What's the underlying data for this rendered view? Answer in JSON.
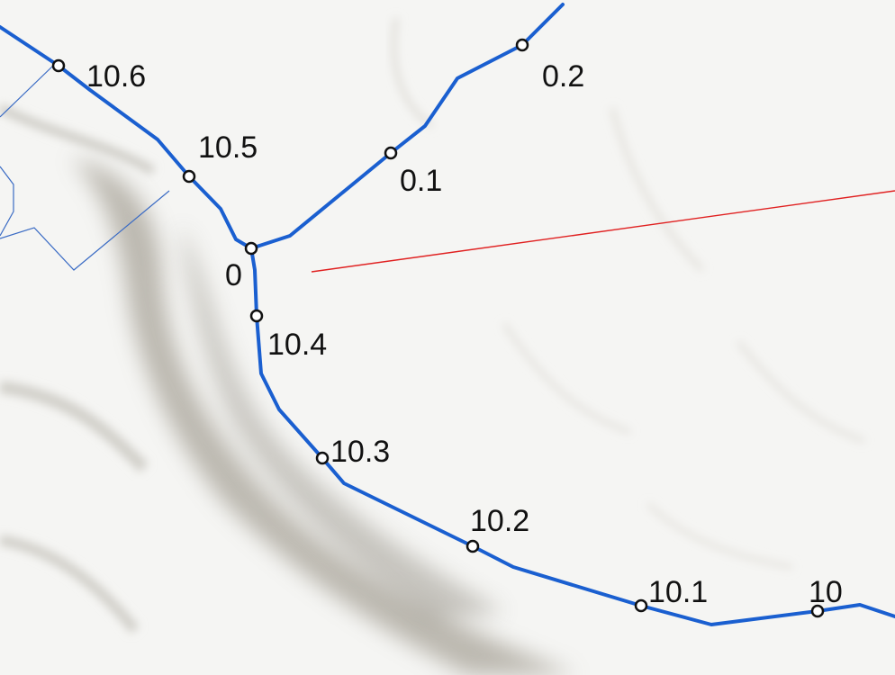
{
  "colors": {
    "background": "#f4f4f2",
    "river": "#1a5fd0",
    "marker_fill": "#ffffff",
    "marker_stroke": "#111111",
    "boundary": "#3a6bc4",
    "red_line": "#e02020",
    "valley_shadow": "#a9a49a"
  },
  "labels": {
    "m_10_6": "10.6",
    "m_10_5": "10.5",
    "m_0": "0",
    "m_0_1": "0.1",
    "m_0_2": "0.2",
    "m_10_4": "10.4",
    "m_10_3": "10.3",
    "m_10_2": "10.2",
    "m_10_1": "10.1",
    "m_10": "10"
  }
}
